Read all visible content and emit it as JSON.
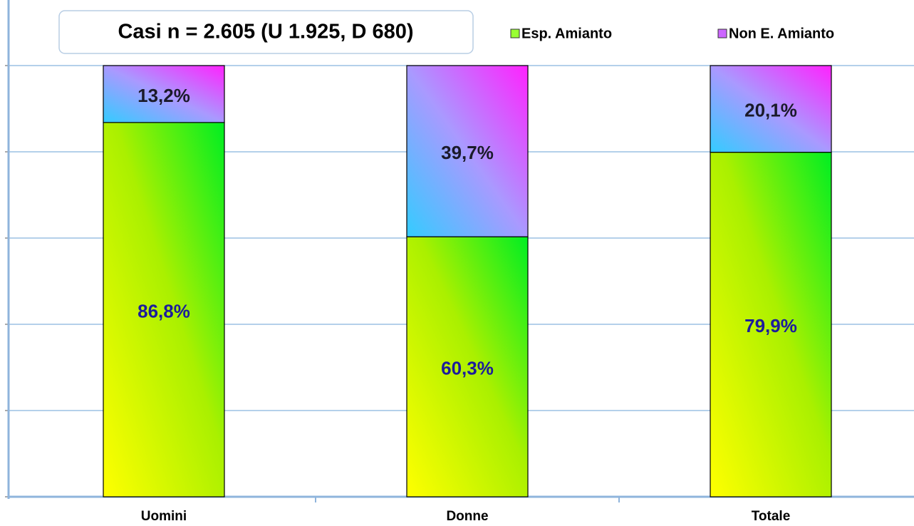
{
  "chart_data": {
    "type": "stacked_bar",
    "title": "Casi n = 2.605  (U 1.925, D 680)",
    "categories": [
      "Uomini",
      "Donne",
      "Totale"
    ],
    "series": [
      {
        "name": "Esp. Amianto",
        "color": "#99ff33",
        "values": [
          86.8,
          60.3,
          79.9
        ],
        "value_labels": [
          "86,8%",
          "60,3%",
          "79,9%"
        ]
      },
      {
        "name": "Non E. Amianto",
        "color": "#cc66ff",
        "values": [
          13.2,
          39.7,
          20.1
        ],
        "value_labels": [
          "13,2%",
          "39,7%",
          "20,1%"
        ]
      }
    ],
    "ylim": [
      0,
      100
    ],
    "yticks": [
      0,
      20,
      40,
      60,
      80,
      100
    ],
    "grid": true
  }
}
